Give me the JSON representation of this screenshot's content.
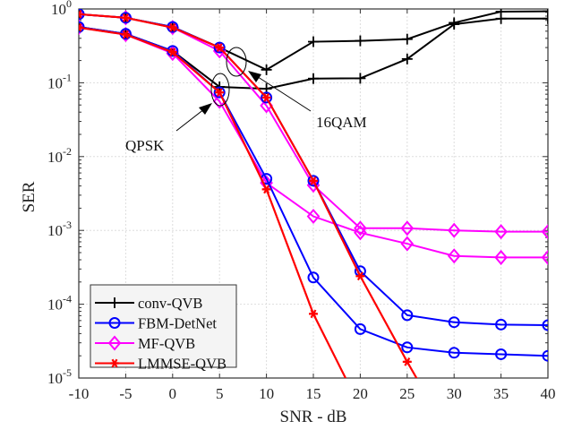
{
  "chart_data": {
    "type": "line",
    "title": "",
    "xlabel": "SNR - dB",
    "ylabel": "SER",
    "xlim": [
      -10,
      40
    ],
    "ylim": [
      1e-05,
      1
    ],
    "yscale": "log",
    "grid": true,
    "legend_position": "bottom-left",
    "x": [
      -10,
      -5,
      0,
      5,
      10,
      15,
      20,
      25,
      30,
      35,
      40
    ],
    "xticks": [
      "-10",
      "-5",
      "0",
      "5",
      "10",
      "15",
      "20",
      "25",
      "30",
      "35",
      "40"
    ],
    "yticks": [
      {
        "base": "10",
        "exp": "0"
      },
      {
        "base": "10",
        "exp": "-1"
      },
      {
        "base": "10",
        "exp": "-2"
      },
      {
        "base": "10",
        "exp": "-3"
      },
      {
        "base": "10",
        "exp": "-4"
      },
      {
        "base": "10",
        "exp": "-5"
      }
    ],
    "legend": [
      {
        "name": "conv-QVB",
        "color": "#000000",
        "marker": "plus"
      },
      {
        "name": "FBM-DetNet",
        "color": "#0000ff",
        "marker": "circle"
      },
      {
        "name": "MF-QVB",
        "color": "#ff00ff",
        "marker": "diamond"
      },
      {
        "name": "LMMSE-QVB",
        "color": "#ff0000",
        "marker": "asterisk"
      }
    ],
    "series": [
      {
        "method": "conv-QVB",
        "group": "16QAM",
        "color": "#000000",
        "marker": "plus",
        "values": [
          0.85,
          0.76,
          0.57,
          0.3,
          0.15,
          0.36,
          0.37,
          0.39,
          0.65,
          0.92,
          0.93
        ]
      },
      {
        "method": "conv-QVB",
        "group": "QPSK",
        "color": "#000000",
        "marker": "plus",
        "values": [
          0.57,
          0.46,
          0.27,
          0.088,
          0.083,
          0.114,
          0.115,
          0.21,
          0.62,
          0.74,
          0.74
        ]
      },
      {
        "method": "FBM-DetNet",
        "group": "16QAM",
        "color": "#0000ff",
        "marker": "circle",
        "values": [
          0.85,
          0.76,
          0.57,
          0.3,
          0.063,
          0.0047,
          0.00028,
          7.1e-05,
          5.7e-05,
          5.3e-05,
          5.2e-05
        ]
      },
      {
        "method": "FBM-DetNet",
        "group": "QPSK",
        "color": "#0000ff",
        "marker": "circle",
        "values": [
          0.57,
          0.46,
          0.27,
          0.074,
          0.005,
          0.00023,
          4.6e-05,
          2.6e-05,
          2.2e-05,
          2.1e-05,
          2e-05
        ]
      },
      {
        "method": "MF-QVB",
        "group": "16QAM",
        "color": "#ff00ff",
        "marker": "diamond",
        "values": [
          0.85,
          0.76,
          0.56,
          0.27,
          0.049,
          0.0041,
          0.00107,
          0.00107,
          0.001,
          0.00096,
          0.00096
        ]
      },
      {
        "method": "MF-QVB",
        "group": "QPSK",
        "color": "#ff00ff",
        "marker": "diamond",
        "values": [
          0.56,
          0.45,
          0.25,
          0.056,
          0.0044,
          0.00155,
          0.00093,
          0.00066,
          0.00045,
          0.00043,
          0.00043
        ]
      },
      {
        "method": "LMMSE-QVB",
        "group": "16QAM",
        "color": "#ff0000",
        "marker": "asterisk",
        "values": [
          0.85,
          0.76,
          0.56,
          0.3,
          0.063,
          0.0047,
          0.00024,
          1.66e-05,
          1.3e-06,
          null,
          null
        ]
      },
      {
        "method": "LMMSE-QVB",
        "group": "QPSK",
        "color": "#ff0000",
        "marker": "asterisk",
        "values": [
          0.56,
          0.45,
          0.26,
          0.074,
          0.0036,
          7.4e-05,
          4e-06,
          null,
          null,
          null,
          null
        ]
      }
    ],
    "annotations": [
      {
        "text": "QPSK",
        "at_x": 5,
        "at_y": 0.08
      },
      {
        "text": "16QAM",
        "at_x": 7,
        "at_y": 0.2
      }
    ]
  }
}
